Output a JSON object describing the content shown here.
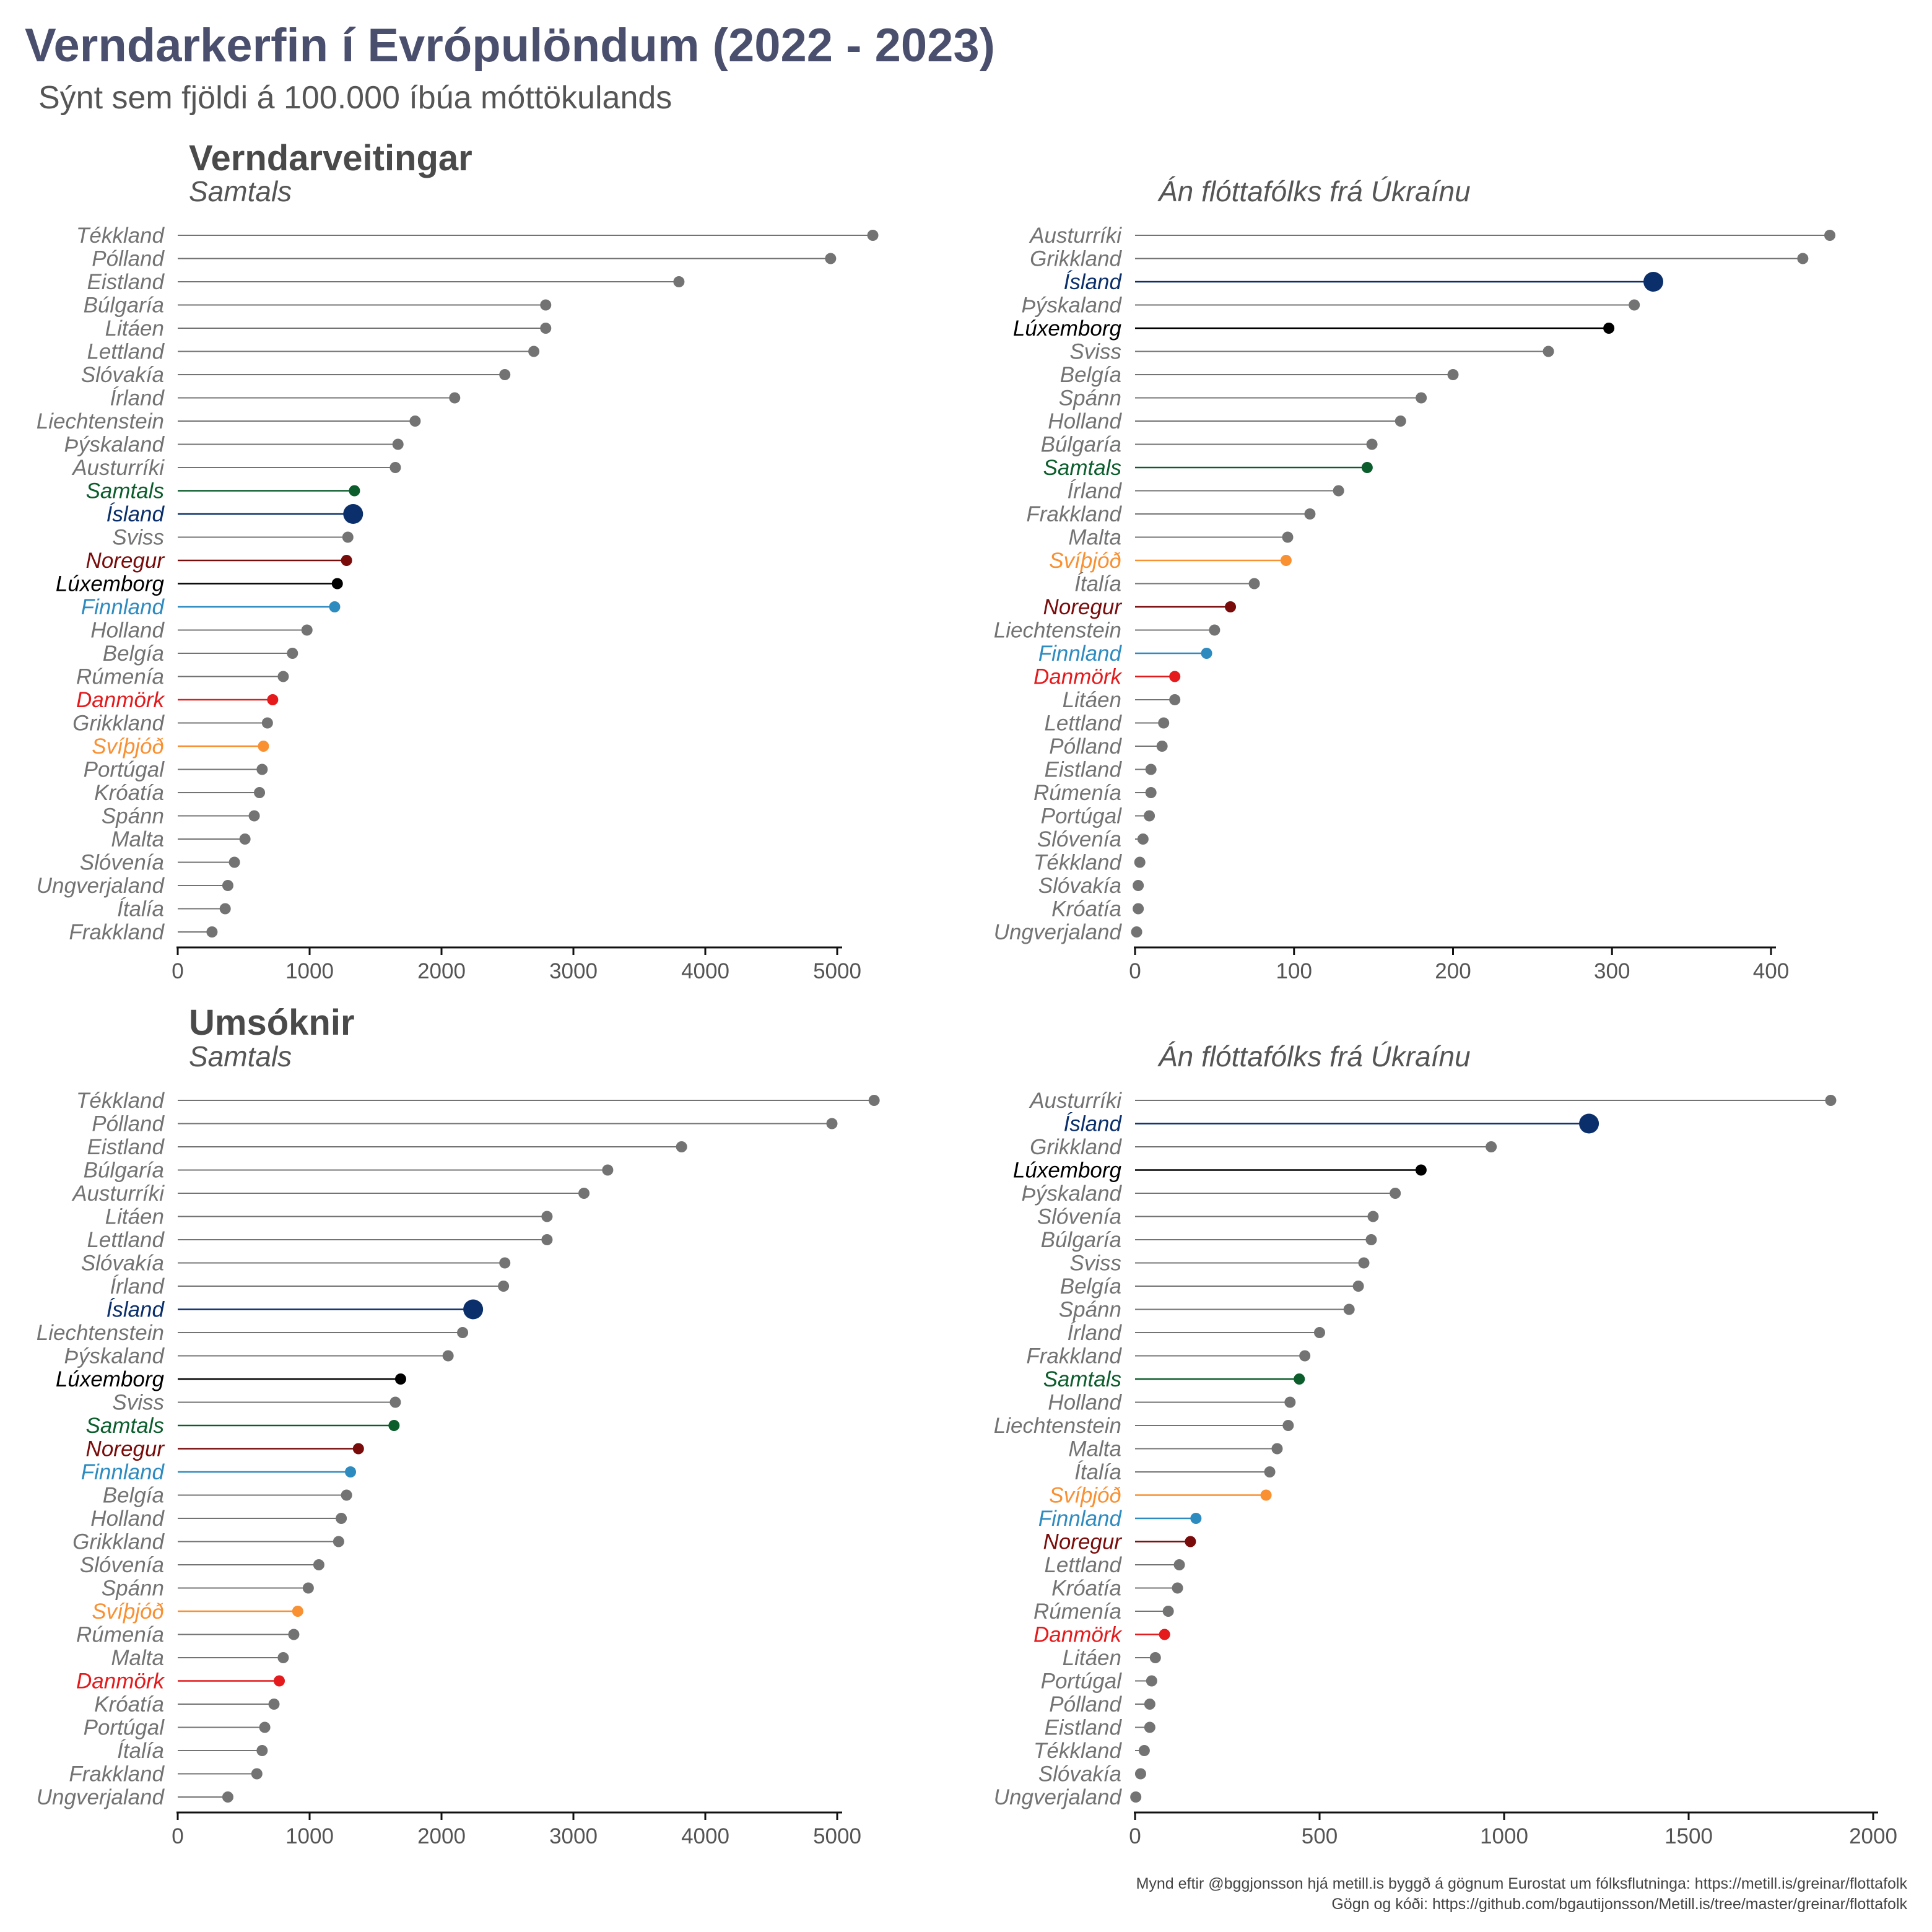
{
  "title": "Verndarkerfin í Evrópulöndum (2022 - 2023)",
  "subtitle": "Sýnt sem fjöldi á 100.000 íbúa móttökulands",
  "caption": [
    "Mynd eftir @bggjonsson hjá metill.is byggð á gögnum Eurostat um fólksflutninga: https://metill.is/greinar/flottafolk",
    "Gögn og kóði: https://github.com/bgautijonsson/Metill.is/tree/master/greinar/flottafolk"
  ],
  "row_titles": [
    "Verndarveitingar",
    "Umsóknir"
  ],
  "highlight_colors": {
    "Ísland": "#0a2f6b",
    "Samtals": "#0b5d2c",
    "Noregur": "#7a0b0b",
    "Lúxemborg": "#000000",
    "Finnland": "#2e8bc0",
    "Danmörk": "#e41a1c",
    "Svíþjóð": "#f99032",
    "default": "#737373"
  },
  "chart_data": [
    {
      "type": "lollipop",
      "title": "Verndarveitingar",
      "subtitle": "Samtals",
      "xlim": [
        0,
        5000
      ],
      "xticks": [
        0,
        1000,
        2000,
        3000,
        4000,
        5000
      ],
      "categories": [
        "Tékkland",
        "Pólland",
        "Eistland",
        "Búlgaría",
        "Litáen",
        "Lettland",
        "Slóvakía",
        "Írland",
        "Liechtenstein",
        "Þýskaland",
        "Austurríki",
        "Samtals",
        "Ísland",
        "Sviss",
        "Noregur",
        "Lúxemborg",
        "Finnland",
        "Holland",
        "Belgía",
        "Rúmenía",
        "Danmörk",
        "Grikkland",
        "Svíþjóð",
        "Portúgal",
        "Króatía",
        "Spánn",
        "Malta",
        "Slóvenía",
        "Ungverjaland",
        "Ítalía",
        "Frakkland"
      ],
      "values": [
        5270,
        4950,
        3800,
        2790,
        2790,
        2700,
        2480,
        2100,
        1800,
        1670,
        1650,
        1340,
        1330,
        1290,
        1280,
        1210,
        1190,
        980,
        870,
        800,
        720,
        680,
        650,
        640,
        620,
        580,
        510,
        430,
        380,
        360,
        260
      ]
    },
    {
      "type": "lollipop",
      "title": "",
      "subtitle": "Án flóttafólks frá Úkraínu",
      "xlim": [
        0,
        400
      ],
      "xticks": [
        0,
        100,
        200,
        300,
        400
      ],
      "categories": [
        "Austurríki",
        "Grikkland",
        "Ísland",
        "Þýskaland",
        "Lúxemborg",
        "Sviss",
        "Belgía",
        "Spánn",
        "Holland",
        "Búlgaría",
        "Samtals",
        "Írland",
        "Frakkland",
        "Malta",
        "Svíþjóð",
        "Ítalía",
        "Noregur",
        "Liechtenstein",
        "Finnland",
        "Danmörk",
        "Litáen",
        "Lettland",
        "Pólland",
        "Eistland",
        "Rúmenía",
        "Portúgal",
        "Slóvenía",
        "Tékkland",
        "Slóvakía",
        "Króatía",
        "Ungverjaland"
      ],
      "values": [
        437,
        420,
        326,
        314,
        298,
        260,
        200,
        180,
        167,
        149,
        146,
        128,
        110,
        96,
        95,
        75,
        60,
        50,
        45,
        25,
        25,
        18,
        17,
        10,
        10,
        9,
        5,
        3,
        2,
        2,
        1
      ]
    },
    {
      "type": "lollipop",
      "title": "Umsóknir",
      "subtitle": "Samtals",
      "xlim": [
        0,
        5000
      ],
      "xticks": [
        0,
        1000,
        2000,
        3000,
        4000,
        5000
      ],
      "categories": [
        "Tékkland",
        "Pólland",
        "Eistland",
        "Búlgaría",
        "Austurríki",
        "Litáen",
        "Lettland",
        "Slóvakía",
        "Írland",
        "Ísland",
        "Liechtenstein",
        "Þýskaland",
        "Lúxemborg",
        "Sviss",
        "Samtals",
        "Noregur",
        "Finnland",
        "Belgía",
        "Holland",
        "Grikkland",
        "Slóvenía",
        "Spánn",
        "Svíþjóð",
        "Rúmenía",
        "Malta",
        "Danmörk",
        "Króatía",
        "Portúgal",
        "Ítalía",
        "Frakkland",
        "Ungverjaland"
      ],
      "values": [
        5280,
        4960,
        3820,
        3260,
        3080,
        2800,
        2800,
        2480,
        2470,
        2240,
        2160,
        2050,
        1690,
        1650,
        1640,
        1370,
        1310,
        1280,
        1240,
        1220,
        1070,
        990,
        910,
        880,
        800,
        770,
        730,
        660,
        640,
        600,
        380
      ]
    },
    {
      "type": "lollipop",
      "title": "",
      "subtitle": "Án flóttafólks frá Úkraínu",
      "xlim": [
        0,
        2000
      ],
      "xticks": [
        0,
        500,
        1000,
        1500,
        2000
      ],
      "categories": [
        "Austurríki",
        "Ísland",
        "Grikkland",
        "Lúxemborg",
        "Þýskaland",
        "Slóvenía",
        "Búlgaría",
        "Sviss",
        "Belgía",
        "Spánn",
        "Írland",
        "Frakkland",
        "Samtals",
        "Holland",
        "Liechtenstein",
        "Malta",
        "Ítalía",
        "Svíþjóð",
        "Finnland",
        "Noregur",
        "Lettland",
        "Króatía",
        "Rúmenía",
        "Danmörk",
        "Litáen",
        "Portúgal",
        "Pólland",
        "Eistland",
        "Tékkland",
        "Slóvakía",
        "Ungverjaland"
      ],
      "values": [
        1885,
        1230,
        965,
        775,
        705,
        645,
        640,
        620,
        605,
        580,
        500,
        460,
        445,
        420,
        415,
        385,
        365,
        355,
        165,
        150,
        120,
        115,
        90,
        80,
        55,
        45,
        40,
        40,
        25,
        15,
        2
      ]
    }
  ]
}
